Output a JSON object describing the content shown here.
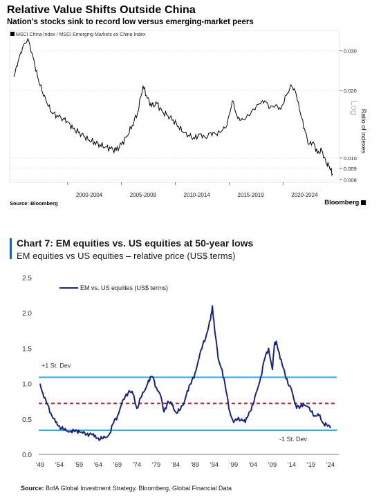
{
  "top": {
    "title": "Relative Value Shifts Outside China",
    "subtitle": "Nation's stocks sink to record low versus emerging-market peers",
    "source": "Source: Bloomberg",
    "brand": "Bloomberg",
    "colors": {
      "line": "#000000",
      "grid": "#d0d0d0"
    }
  },
  "bottom": {
    "title": "Chart 7: EM equities vs. US equities at 50-year lows",
    "subtitle": "EM equities vs US equities – relative price (US$ terms)",
    "source_prefix": "Source:",
    "source_text": "BofA Global Investment Strategy, Bloomberg, Global Financial Data",
    "colors": {
      "line": "#17247a",
      "band": "#3aa8df",
      "mean": "#c0202a",
      "accent": "#1f5fa8"
    }
  },
  "chart_data": [
    {
      "type": "line",
      "title": "Relative Value Shifts Outside China",
      "subtitle": "Nation's stocks sink to record low versus emerging-market peers",
      "legend": "MSCI China Index / MSCI Emerging Markets ex China Index",
      "ylabel": "Ratio of indexes",
      "yscale": "log",
      "yscale_label": "Log",
      "ylim": [
        0.0078,
        0.036
      ],
      "yticks": [
        "0.030",
        "0.020",
        "0.010",
        "0.009",
        "0.008"
      ],
      "xticks": [
        "2000-2004",
        "2005-2009",
        "2010-2014",
        "2015-2019",
        "2020-2024"
      ],
      "x": [
        1995.0,
        1995.4,
        1995.8,
        1996.3,
        1996.8,
        1997.2,
        1997.6,
        1998.0,
        1998.5,
        1999.0,
        1999.6,
        2000.0,
        2000.5,
        2001.0,
        2001.5,
        2002.0,
        2002.5,
        2003.0,
        2003.5,
        2004.0,
        2004.5,
        2005.0,
        2005.5,
        2006.0,
        2006.5,
        2007.0,
        2007.4,
        2007.8,
        2008.3,
        2008.8,
        2009.3,
        2009.8,
        2010.3,
        2010.8,
        2011.3,
        2011.8,
        2012.3,
        2012.8,
        2013.3,
        2013.8,
        2014.3,
        2014.8,
        2015.3,
        2015.8,
        2016.3,
        2016.8,
        2017.3,
        2017.8,
        2018.3,
        2018.8,
        2019.3,
        2019.8,
        2020.3,
        2020.8,
        2021.2,
        2021.6,
        2022.0,
        2022.4,
        2022.8,
        2023.2,
        2023.6,
        2024.0,
        2024.3,
        2024.6
      ],
      "values": [
        0.023,
        0.027,
        0.031,
        0.034,
        0.028,
        0.023,
        0.02,
        0.018,
        0.016,
        0.0155,
        0.015,
        0.0145,
        0.0135,
        0.013,
        0.0125,
        0.012,
        0.0118,
        0.0115,
        0.0112,
        0.011,
        0.0108,
        0.0115,
        0.0125,
        0.014,
        0.016,
        0.021,
        0.0185,
        0.017,
        0.0175,
        0.016,
        0.0155,
        0.0148,
        0.0138,
        0.013,
        0.0125,
        0.0122,
        0.0128,
        0.0123,
        0.013,
        0.0128,
        0.0132,
        0.014,
        0.018,
        0.015,
        0.0148,
        0.0155,
        0.0165,
        0.0175,
        0.018,
        0.0168,
        0.0172,
        0.0165,
        0.019,
        0.021,
        0.0195,
        0.016,
        0.0135,
        0.0115,
        0.0118,
        0.0105,
        0.0108,
        0.0095,
        0.0092,
        0.0085
      ]
    },
    {
      "type": "line",
      "title": "Chart 7: EM equities vs. US equities at 50-year lows",
      "subtitle": "EM equities vs US equities – relative price (US$ terms)",
      "legend": "EM vs. US equities (US$ terms)",
      "ylim": [
        0.0,
        2.5
      ],
      "yticks": [
        "2.5",
        "2.0",
        "1.5",
        "1.0",
        "0.5",
        "0.0"
      ],
      "xticks": [
        "'49",
        "'54",
        "'59",
        "'64",
        "'69",
        "'74",
        "'79",
        "'84",
        "'89",
        "'94",
        "'99",
        "'04",
        "'09",
        "'14",
        "'19",
        "'24"
      ],
      "x": [
        1949,
        1950,
        1951,
        1952,
        1953,
        1954,
        1955,
        1956,
        1957,
        1958,
        1959,
        1960,
        1961,
        1962,
        1963,
        1964,
        1965,
        1966,
        1967,
        1968,
        1969,
        1970,
        1971,
        1972,
        1973,
        1974,
        1975,
        1976,
        1977,
        1978,
        1979,
        1980,
        1981,
        1982,
        1983,
        1984,
        1985,
        1986,
        1987,
        1988,
        1989,
        1990,
        1991,
        1992,
        1993,
        1993.5,
        1994,
        1995,
        1996,
        1997,
        1998,
        1999,
        2000,
        2001,
        2002,
        2003,
        2004,
        2005,
        2006,
        2007,
        2008,
        2009,
        2009.5,
        2010,
        2011,
        2012,
        2013,
        2014,
        2015,
        2016,
        2017,
        2018,
        2019,
        2020,
        2021,
        2022,
        2023,
        2024
      ],
      "values": [
        1.0,
        0.8,
        0.7,
        0.55,
        0.45,
        0.4,
        0.35,
        0.33,
        0.33,
        0.32,
        0.34,
        0.3,
        0.28,
        0.3,
        0.25,
        0.23,
        0.22,
        0.24,
        0.3,
        0.45,
        0.55,
        0.7,
        0.82,
        0.9,
        0.85,
        0.65,
        0.8,
        0.9,
        1.05,
        1.1,
        0.95,
        0.85,
        0.6,
        0.75,
        0.7,
        0.6,
        0.62,
        0.7,
        0.9,
        1.0,
        1.15,
        1.35,
        1.55,
        1.7,
        1.9,
        2.1,
        1.8,
        1.35,
        1.2,
        0.9,
        0.6,
        0.45,
        0.5,
        0.5,
        0.45,
        0.6,
        0.7,
        0.9,
        1.1,
        1.35,
        1.5,
        1.2,
        1.55,
        1.6,
        1.35,
        1.2,
        1.0,
        0.9,
        0.7,
        0.65,
        0.72,
        0.68,
        0.6,
        0.55,
        0.55,
        0.45,
        0.42,
        0.37
      ],
      "reference_lines": [
        {
          "label": "+1 St. Dev",
          "value": 1.09
        },
        {
          "label": "",
          "value": 0.72
        },
        {
          "label": "-1 St. Dev",
          "value": 0.34
        }
      ]
    }
  ]
}
